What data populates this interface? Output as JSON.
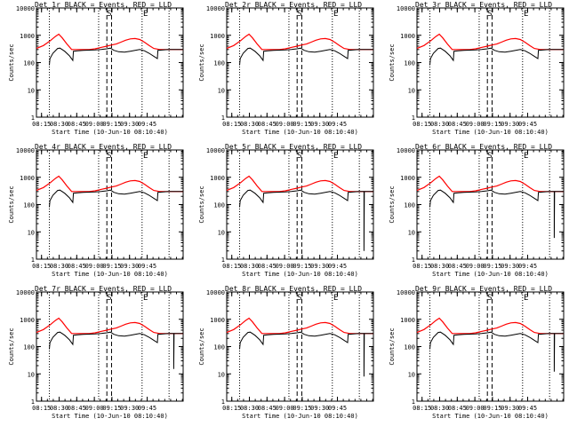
{
  "figure": {
    "xlabel": "Start Time (10-Jun-10 08:10:40)",
    "ylabel": "Counts/sec",
    "x_ticks": [
      "08:15",
      "08:30",
      "08:45",
      "09:00",
      "09:15",
      "09:30",
      "09:45"
    ],
    "y_ticks": [
      "1",
      "10",
      "100",
      "1000",
      "10000"
    ],
    "markers": [
      "S",
      "E"
    ],
    "colors": {
      "events": "#000000",
      "lld": "#ff0000",
      "axes": "#000000",
      "background": "#ffffff"
    }
  },
  "chart_data": [
    {
      "type": "line",
      "title": "Det 1r BLACK = Events, RED = LLD",
      "dropouts": []
    },
    {
      "type": "line",
      "title": "Det 2r BLACK = Events, RED = LLD",
      "dropouts": []
    },
    {
      "type": "line",
      "title": "Det 3r BLACK = Events, RED = LLD",
      "dropouts": []
    },
    {
      "type": "line",
      "title": "Det 4r BLACK = Events, RED = LLD",
      "dropouts": []
    },
    {
      "type": "line",
      "title": "Det 5r BLACK = Events, RED = LLD",
      "dropouts": [
        {
          "t": 117,
          "v": 2
        }
      ]
    },
    {
      "type": "line",
      "title": "Det 6r BLACK = Events, RED = LLD",
      "dropouts": [
        {
          "t": 117,
          "v": 6
        }
      ]
    },
    {
      "type": "line",
      "title": "Det 7r BLACK = Events, RED = LLD",
      "dropouts": [
        {
          "t": 117,
          "v": 15
        }
      ]
    },
    {
      "type": "line",
      "title": "Det 8r BLACK = Events, RED = LLD",
      "dropouts": [
        {
          "t": 117,
          "v": 8
        }
      ]
    },
    {
      "type": "line",
      "title": "Det 9r BLACK = Events, RED = LLD",
      "dropouts": [
        {
          "t": 117,
          "v": 12
        }
      ]
    }
  ],
  "series_common": {
    "x_range_min": [
      0,
      125
    ],
    "y_range": [
      1,
      10000
    ],
    "y_scale": "log",
    "x_tick_values_min": [
      4.33,
      19.33,
      34.33,
      49.33,
      64.33,
      79.33,
      94.33
    ],
    "dotted_lines_min": [
      11,
      53,
      90,
      113
    ],
    "dashed_lines_min": [
      60,
      64
    ],
    "marker_positions_min": [
      62,
      93
    ],
    "lld": {
      "name": "LLD",
      "t": [
        0,
        6,
        12,
        16,
        19,
        22,
        26,
        30,
        35,
        40,
        45,
        50,
        55,
        60,
        64,
        68,
        72,
        76,
        80,
        84,
        88,
        92,
        96,
        100,
        105,
        110,
        115,
        118,
        125
      ],
      "v": [
        330,
        420,
        640,
        900,
        1100,
        800,
        480,
        300,
        300,
        300,
        300,
        320,
        360,
        400,
        440,
        480,
        560,
        660,
        740,
        760,
        700,
        560,
        420,
        330,
        300,
        300,
        300,
        300,
        300
      ]
    },
    "events": {
      "name": "Events",
      "t": [
        11,
        11.5,
        14,
        18,
        20,
        24,
        28,
        31,
        31.5,
        35,
        40,
        45,
        50,
        55,
        60,
        63,
        66,
        70,
        75,
        80,
        84,
        88,
        92,
        96,
        100,
        103,
        103.5,
        108,
        113,
        116,
        118,
        125
      ],
      "v": [
        80,
        140,
        220,
        330,
        340,
        260,
        180,
        120,
        260,
        270,
        280,
        285,
        290,
        300,
        320,
        340,
        280,
        250,
        240,
        260,
        280,
        300,
        270,
        220,
        170,
        140,
        280,
        290,
        300,
        300,
        300,
        300
      ]
    }
  }
}
